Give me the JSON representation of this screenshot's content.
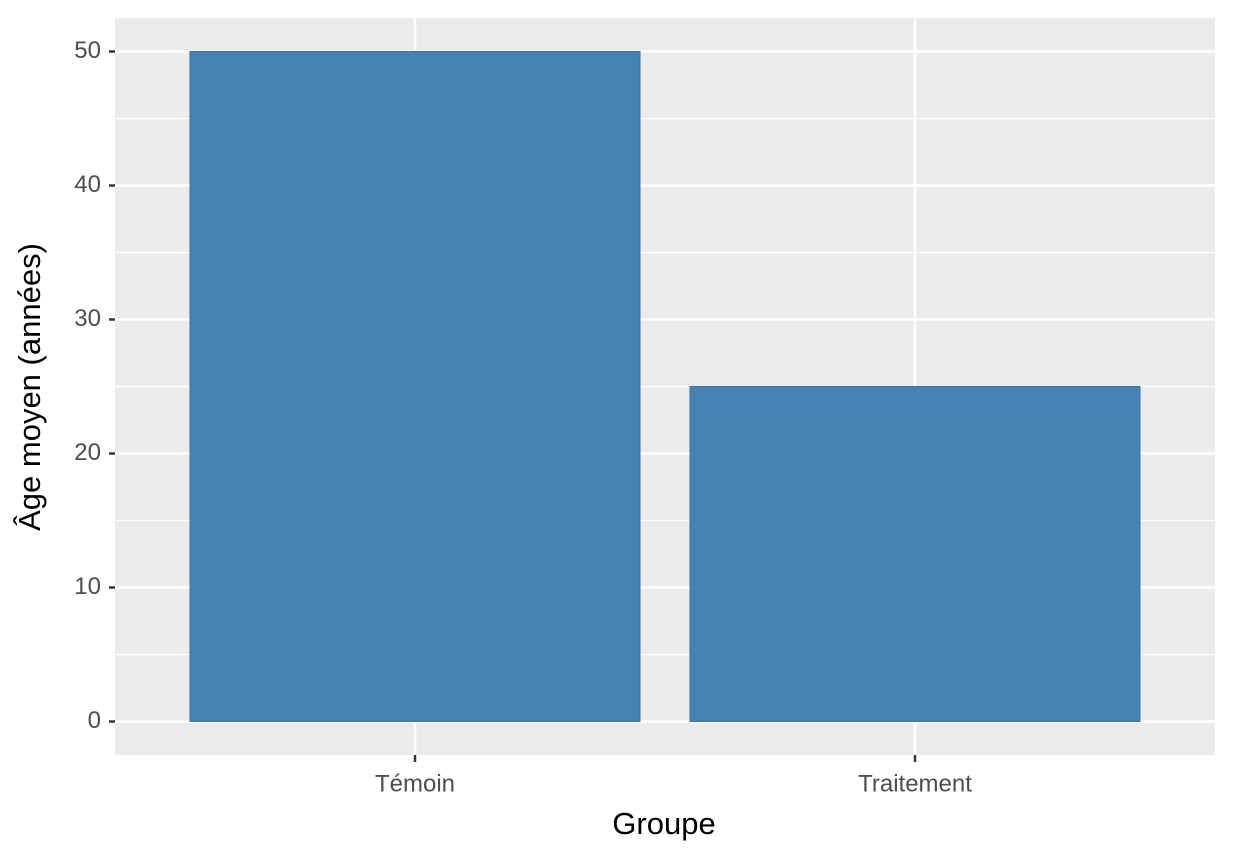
{
  "chart_data": {
    "type": "bar",
    "x_label": "Groupe",
    "y_label": "Âge moyen (années)",
    "categories": [
      "Témoin",
      "Traitement"
    ],
    "values": [
      50,
      25
    ],
    "color": "#4682b4",
    "ylim": [
      -2.5,
      52.5
    ],
    "yticks": [
      0,
      10,
      20,
      30,
      40,
      50
    ],
    "grid": true
  }
}
